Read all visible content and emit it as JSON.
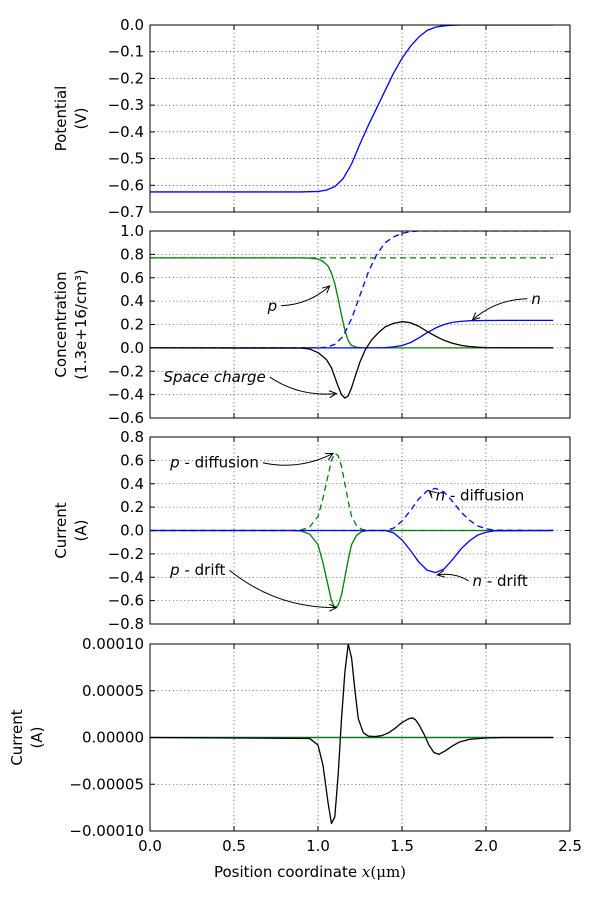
{
  "chart_data": [
    {
      "type": "line",
      "panel": "potential",
      "ylabel": [
        "Potential",
        "(V)"
      ],
      "ylim": [
        -0.7,
        0.0
      ],
      "yticks": [
        0.0,
        -0.1,
        -0.2,
        -0.3,
        -0.4,
        -0.5,
        -0.6,
        -0.7
      ],
      "ytick_labels": [
        "0.0",
        "−0.1",
        "−0.2",
        "−0.3",
        "−0.4",
        "−0.5",
        "−0.6",
        "−0.7"
      ],
      "xlim": [
        0,
        2.5
      ],
      "grid": true,
      "series": [
        {
          "color": "#0000ff",
          "style": "solid",
          "x": [
            0,
            0.9,
            1.0,
            1.05,
            1.1,
            1.15,
            1.2,
            1.25,
            1.3,
            1.35,
            1.4,
            1.45,
            1.5,
            1.55,
            1.6,
            1.65,
            1.7,
            1.75,
            1.8,
            1.85,
            2.4
          ],
          "y": [
            -0.625,
            -0.625,
            -0.623,
            -0.618,
            -0.605,
            -0.575,
            -0.52,
            -0.445,
            -0.375,
            -0.31,
            -0.245,
            -0.18,
            -0.125,
            -0.08,
            -0.045,
            -0.02,
            -0.008,
            -0.003,
            -0.001,
            0.0,
            0.0
          ]
        }
      ]
    },
    {
      "type": "line",
      "panel": "concentration",
      "ylabel": [
        "Concentration",
        "(1.3e+16/cm³)"
      ],
      "ylim": [
        -0.6,
        1.0
      ],
      "yticks": [
        1.0,
        0.8,
        0.6,
        0.4,
        0.2,
        0.0,
        -0.2,
        -0.4,
        -0.6
      ],
      "ytick_labels": [
        "1.0",
        "0.8",
        "0.6",
        "0.4",
        "0.2",
        "0.0",
        "−0.2",
        "−0.4",
        "−0.6"
      ],
      "xlim": [
        0,
        2.5
      ],
      "grid": true,
      "series": [
        {
          "color": "#008000",
          "style": "solid",
          "x": [
            0,
            0.9,
            0.95,
            1.0,
            1.03,
            1.06,
            1.08,
            1.1,
            1.12,
            1.14,
            1.16,
            1.18,
            1.2,
            1.23,
            1.26,
            1.3,
            2.4
          ],
          "y": [
            0.77,
            0.77,
            0.768,
            0.76,
            0.74,
            0.7,
            0.64,
            0.55,
            0.42,
            0.28,
            0.15,
            0.06,
            0.02,
            0.005,
            0.001,
            0.0,
            0.0
          ]
        },
        {
          "color": "#008000",
          "style": "dashed",
          "x": [
            0,
            2.4
          ],
          "y": [
            0.77,
            0.77
          ]
        },
        {
          "color": "#0000ff",
          "style": "dashed",
          "x": [
            0,
            1.0,
            1.05,
            1.1,
            1.15,
            1.2,
            1.25,
            1.3,
            1.35,
            1.4,
            1.45,
            1.5,
            1.55,
            1.6,
            2.4
          ],
          "y": [
            0.0,
            0.0,
            0.005,
            0.03,
            0.1,
            0.25,
            0.45,
            0.65,
            0.8,
            0.9,
            0.95,
            0.98,
            0.995,
            1.0,
            1.0
          ]
        },
        {
          "color": "#0000ff",
          "style": "solid",
          "x": [
            0,
            1.35,
            1.4,
            1.45,
            1.5,
            1.55,
            1.6,
            1.65,
            1.7,
            1.75,
            1.8,
            1.85,
            1.9,
            2.0,
            2.1,
            2.4
          ],
          "y": [
            0.0,
            0.0,
            0.002,
            0.008,
            0.02,
            0.045,
            0.085,
            0.13,
            0.17,
            0.2,
            0.218,
            0.227,
            0.232,
            0.234,
            0.235,
            0.235
          ]
        },
        {
          "color": "#000000",
          "style": "solid",
          "x": [
            0,
            0.9,
            0.95,
            1.0,
            1.05,
            1.08,
            1.1,
            1.12,
            1.14,
            1.16,
            1.18,
            1.2,
            1.22,
            1.25,
            1.28,
            1.32,
            1.36,
            1.4,
            1.45,
            1.5,
            1.55,
            1.6,
            1.65,
            1.7,
            1.75,
            1.8,
            1.85,
            1.9,
            1.95,
            2.0,
            2.4
          ],
          "y": [
            0.0,
            -0.002,
            -0.01,
            -0.04,
            -0.1,
            -0.17,
            -0.25,
            -0.33,
            -0.4,
            -0.43,
            -0.41,
            -0.34,
            -0.25,
            -0.12,
            -0.02,
            0.07,
            0.13,
            0.18,
            0.21,
            0.225,
            0.215,
            0.185,
            0.14,
            0.1,
            0.065,
            0.04,
            0.022,
            0.012,
            0.006,
            0.002,
            0.0
          ]
        }
      ],
      "annotations": [
        {
          "text": "p",
          "italic": true,
          "x": 0.7,
          "y": 0.36,
          "arrow_to": [
            1.07,
            0.53
          ]
        },
        {
          "text": "n",
          "italic": true,
          "x": 2.27,
          "y": 0.42,
          "arrow_to": [
            1.92,
            0.24
          ]
        },
        {
          "text": "Space charge",
          "italic": false,
          "x": 0.08,
          "y": -0.25,
          "arrow_to": [
            1.11,
            -0.39
          ]
        }
      ]
    },
    {
      "type": "line",
      "panel": "current-components",
      "ylabel": [
        "Current",
        "(A)"
      ],
      "ylim": [
        -0.8,
        0.8
      ],
      "yticks": [
        0.8,
        0.6,
        0.4,
        0.2,
        0.0,
        -0.2,
        -0.4,
        -0.6,
        -0.8
      ],
      "ytick_labels": [
        "0.8",
        "0.6",
        "0.4",
        "0.2",
        "0.0",
        "−0.2",
        "−0.4",
        "−0.6",
        "−0.8"
      ],
      "xlim": [
        0,
        2.5
      ],
      "grid": true,
      "series": [
        {
          "color": "#008000",
          "style": "dashed",
          "x": [
            0,
            0.85,
            0.9,
            0.95,
            1.0,
            1.03,
            1.06,
            1.08,
            1.1,
            1.12,
            1.14,
            1.16,
            1.18,
            1.2,
            1.23,
            1.26,
            1.3,
            2.4
          ],
          "y": [
            0.0,
            0.0,
            0.005,
            0.03,
            0.12,
            0.28,
            0.47,
            0.6,
            0.66,
            0.64,
            0.55,
            0.4,
            0.25,
            0.12,
            0.04,
            0.01,
            0.0,
            0.0
          ]
        },
        {
          "color": "#008000",
          "style": "solid",
          "x": [
            0,
            0.85,
            0.9,
            0.95,
            1.0,
            1.03,
            1.06,
            1.08,
            1.1,
            1.12,
            1.14,
            1.16,
            1.18,
            1.2,
            1.23,
            1.26,
            1.3,
            2.4
          ],
          "y": [
            0.0,
            0.0,
            -0.005,
            -0.03,
            -0.12,
            -0.28,
            -0.47,
            -0.6,
            -0.66,
            -0.64,
            -0.55,
            -0.4,
            -0.25,
            -0.12,
            -0.04,
            -0.01,
            0.0,
            0.0
          ]
        },
        {
          "color": "#0000ff",
          "style": "dashed",
          "x": [
            0,
            1.4,
            1.45,
            1.5,
            1.55,
            1.6,
            1.65,
            1.7,
            1.75,
            1.8,
            1.85,
            1.9,
            1.95,
            2.0,
            2.05,
            2.4
          ],
          "y": [
            0.0,
            0.0,
            0.02,
            0.08,
            0.17,
            0.27,
            0.34,
            0.36,
            0.33,
            0.25,
            0.16,
            0.09,
            0.04,
            0.015,
            0.003,
            0.0
          ]
        },
        {
          "color": "#0000ff",
          "style": "solid",
          "x": [
            0,
            1.4,
            1.45,
            1.5,
            1.55,
            1.6,
            1.65,
            1.7,
            1.75,
            1.8,
            1.85,
            1.9,
            1.95,
            2.0,
            2.05,
            2.4
          ],
          "y": [
            0.0,
            0.0,
            -0.02,
            -0.08,
            -0.17,
            -0.27,
            -0.34,
            -0.36,
            -0.33,
            -0.25,
            -0.16,
            -0.09,
            -0.04,
            -0.015,
            -0.003,
            0.0
          ]
        }
      ],
      "annotations": [
        {
          "text": "p",
          "suffix": " - diffusion",
          "x": 0.12,
          "y": 0.58,
          "arrow_to": [
            1.09,
            0.66
          ]
        },
        {
          "text": "n",
          "suffix": " - diffusion",
          "x": 1.7,
          "y": 0.3,
          "arrow_to": [
            1.66,
            0.34
          ]
        },
        {
          "text": "p",
          "suffix": " - drift",
          "x": 0.12,
          "y": -0.34,
          "arrow_to": [
            1.11,
            -0.66
          ]
        },
        {
          "text": "n",
          "suffix": " - drift",
          "x": 1.92,
          "y": -0.43,
          "arrow_to": [
            1.71,
            -0.38
          ]
        }
      ]
    },
    {
      "type": "line",
      "panel": "total-current",
      "ylabel": [
        "Current",
        "(A)"
      ],
      "ylim": [
        -0.0001,
        0.0001
      ],
      "yticks": [
        0.0001,
        5e-05,
        0.0,
        -5e-05,
        -0.0001
      ],
      "ytick_labels": [
        "0.00010",
        "0.00005",
        "0.00000",
        "−0.00005",
        "−0.00010"
      ],
      "xlim": [
        0,
        2.5
      ],
      "xticks": [
        0.0,
        0.5,
        1.0,
        1.5,
        2.0,
        2.5
      ],
      "xtick_labels": [
        "0.0",
        "0.5",
        "1.0",
        "1.5",
        "2.0",
        "2.5"
      ],
      "xlabel_text": "Position coordinate ",
      "xlabel_math": "x",
      "xlabel_units": "(μm)",
      "grid": true,
      "series": [
        {
          "color": "#0000ff",
          "style": "solid",
          "x": [
            0,
            1.1,
            1.2,
            1.3,
            2.4
          ],
          "y": [
            0.0,
            0.0,
            0.0,
            0.0,
            0.0
          ]
        },
        {
          "color": "#008000",
          "style": "solid",
          "x": [
            0,
            2.4
          ],
          "y": [
            0.0,
            0.0
          ]
        },
        {
          "color": "#000000",
          "style": "solid",
          "x": [
            0,
            0.95,
            1.0,
            1.03,
            1.06,
            1.08,
            1.1,
            1.12,
            1.14,
            1.16,
            1.18,
            1.2,
            1.22,
            1.24,
            1.27,
            1.3,
            1.34,
            1.38,
            1.42,
            1.46,
            1.5,
            1.54,
            1.56,
            1.58,
            1.6,
            1.63,
            1.66,
            1.69,
            1.72,
            1.76,
            1.8,
            1.84,
            1.9,
            2.0,
            2.1,
            2.4
          ],
          "y": [
            0.0,
            -1e-06,
            -8e-06,
            -3e-05,
            -7e-05,
            -9.2e-05,
            -8.5e-05,
            -4e-05,
            2e-05,
            7e-05,
            0.0001,
            8.5e-05,
            5e-05,
            2e-05,
            5e-06,
            1.5e-06,
            1e-06,
            2e-06,
            5e-06,
            1e-05,
            1.6e-05,
            2e-05,
            2.1e-05,
            1.9e-05,
            1.4e-05,
            4e-06,
            -8e-06,
            -1.6e-05,
            -1.8e-05,
            -1.4e-05,
            -9e-06,
            -5e-06,
            -2e-06,
            -5e-07,
            0.0,
            0.0
          ]
        }
      ]
    }
  ]
}
